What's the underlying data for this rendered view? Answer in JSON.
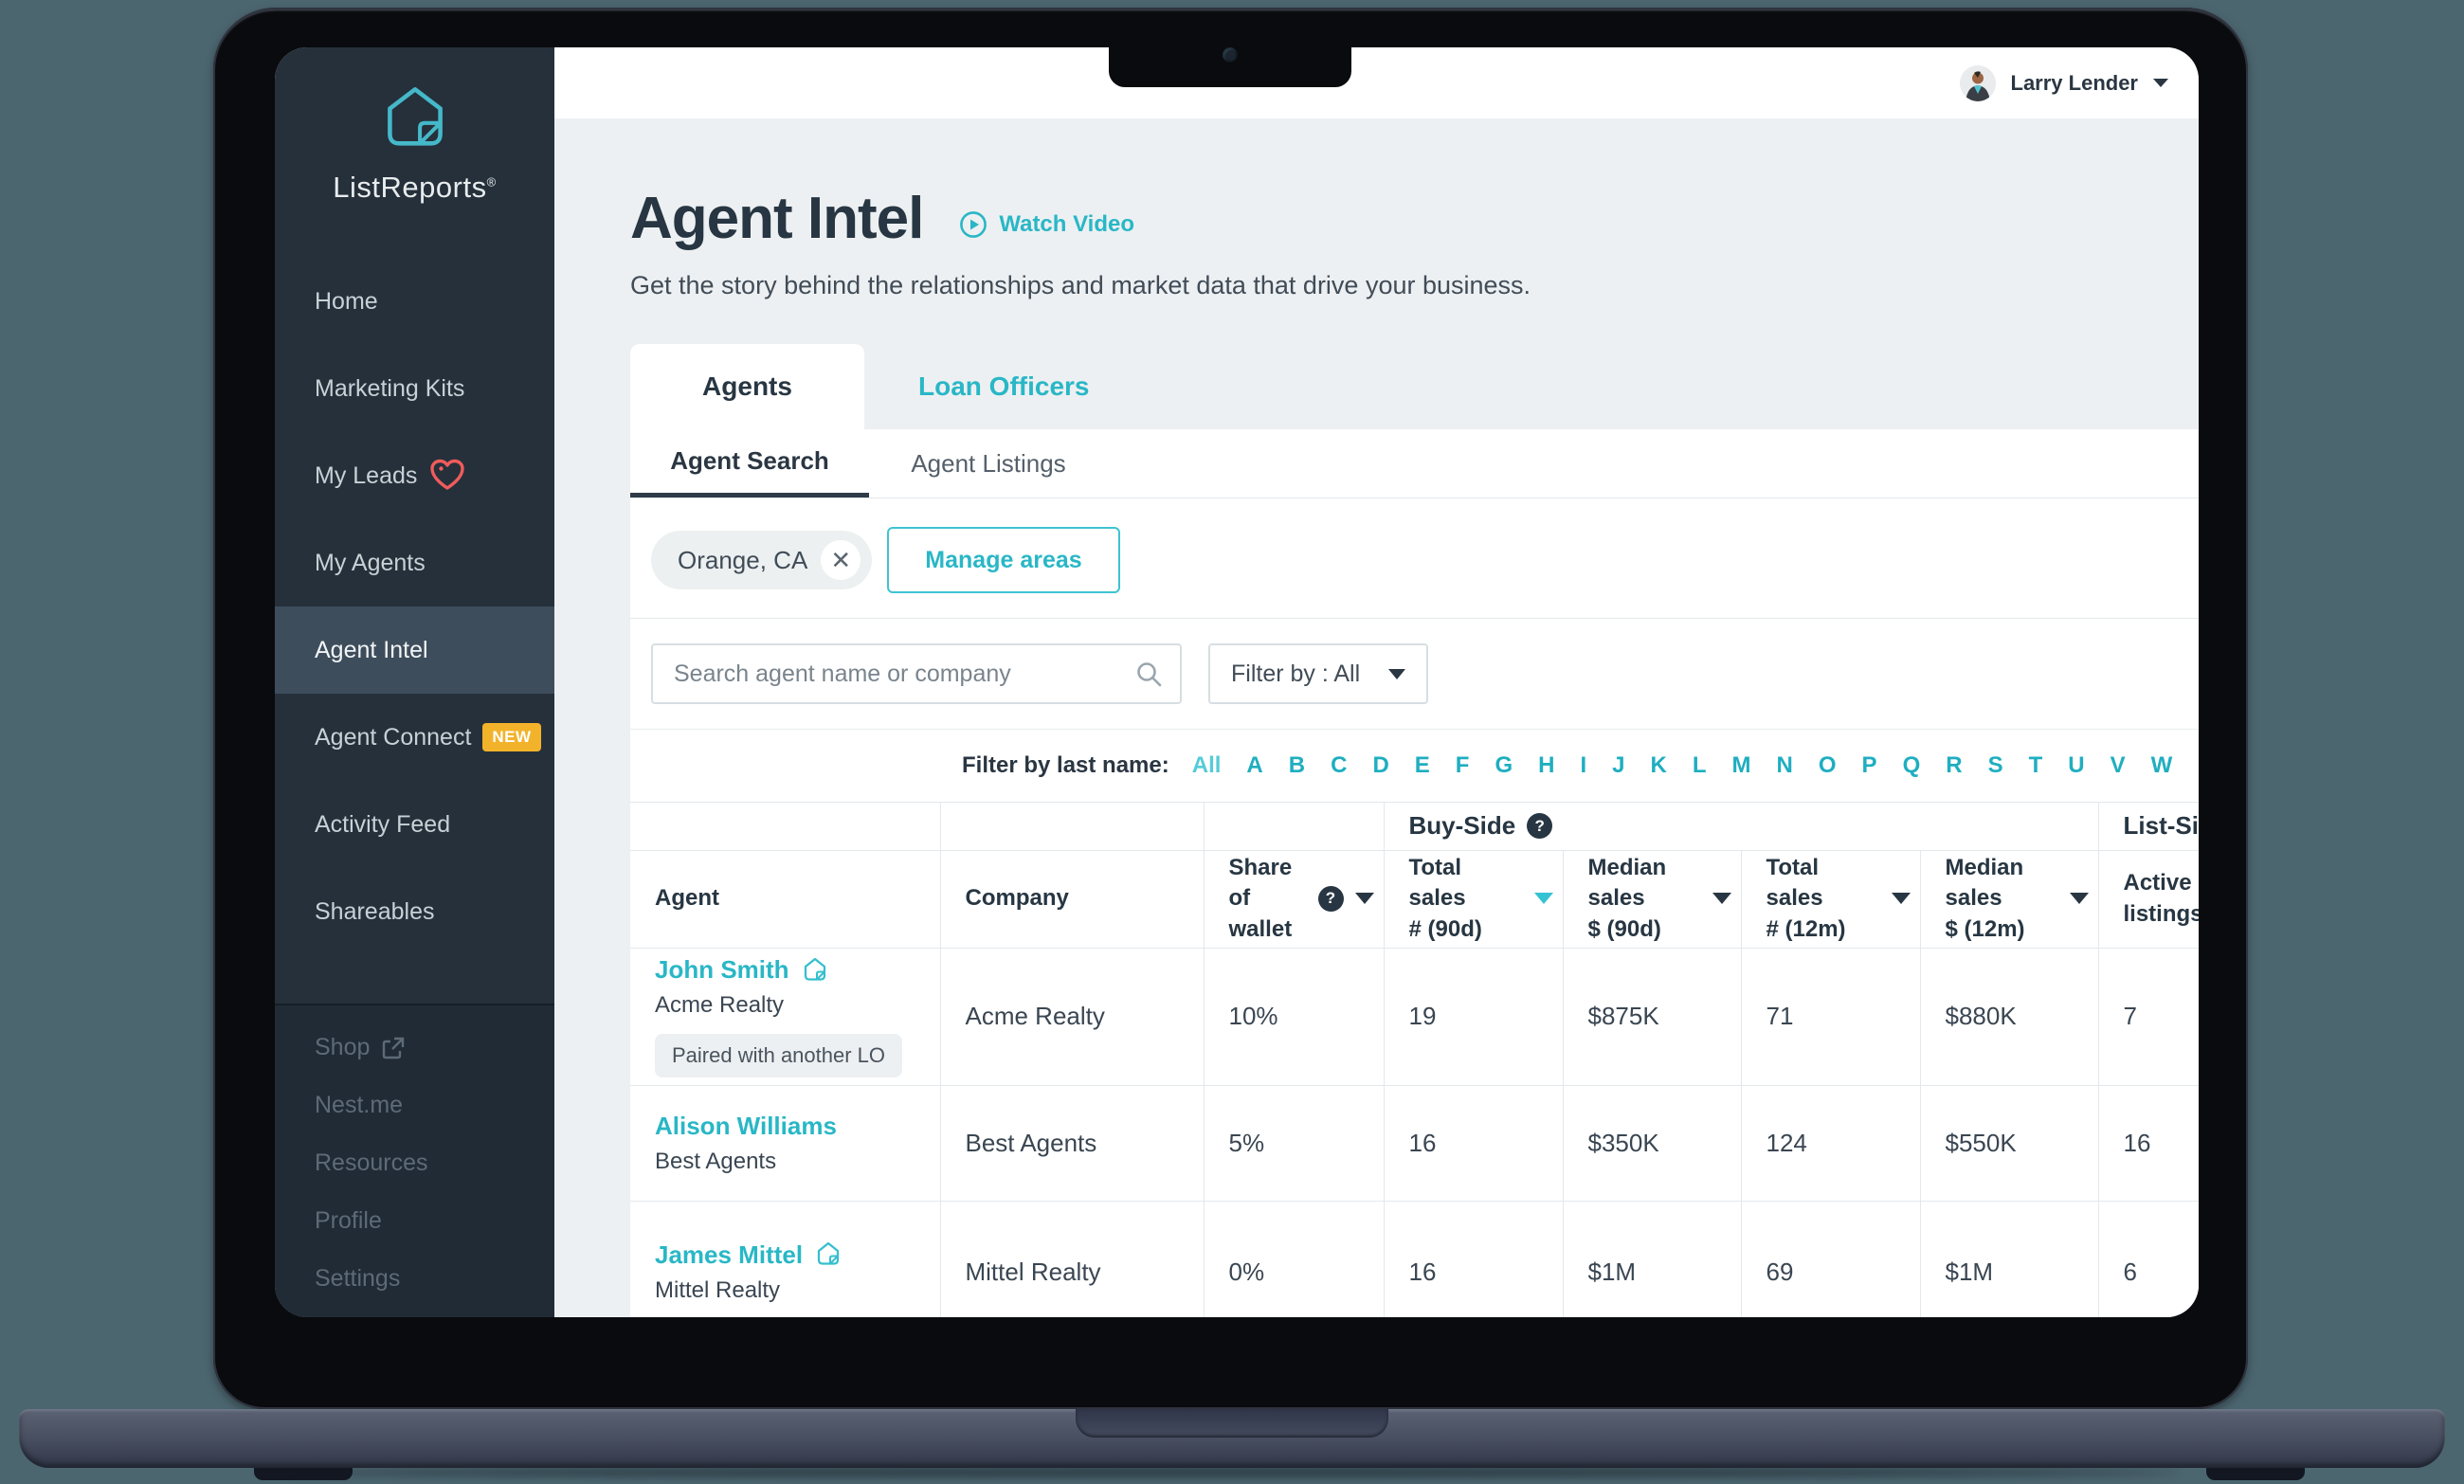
{
  "user": {
    "name": "Larry Lender"
  },
  "sidebar": {
    "logo_text": "ListReports",
    "logo_reg": "®",
    "items": [
      {
        "label": "Home"
      },
      {
        "label": "Marketing Kits"
      },
      {
        "label": "My Leads"
      },
      {
        "label": "My Agents"
      },
      {
        "label": "Agent Intel"
      },
      {
        "label": "Agent Connect",
        "badge": "NEW"
      },
      {
        "label": "Activity Feed"
      },
      {
        "label": "Shareables"
      }
    ],
    "bottom_items": [
      {
        "label": "Shop"
      },
      {
        "label": "Nest.me"
      },
      {
        "label": "Resources"
      },
      {
        "label": "Profile"
      },
      {
        "label": "Settings"
      }
    ]
  },
  "header": {
    "title": "Agent Intel",
    "watch_video": "Watch Video",
    "subtitle": "Get the story behind the relationships and market data that drive your business."
  },
  "tabs": {
    "agents": "Agents",
    "loan_officers": "Loan Officers"
  },
  "subtabs": {
    "search": "Agent Search",
    "listings": "Agent Listings"
  },
  "area_filter": {
    "chip": "Orange, CA",
    "chip_close": "✕",
    "manage_button": "Manage areas"
  },
  "search": {
    "placeholder": "Search agent name or company",
    "filter_label": "Filter by : All"
  },
  "filter_bar": {
    "label": "Filter by last name:",
    "letters": [
      "All",
      "A",
      "B",
      "C",
      "D",
      "E",
      "F",
      "G",
      "H",
      "I",
      "J",
      "K",
      "L",
      "M",
      "N",
      "O",
      "P",
      "Q",
      "R",
      "S",
      "T",
      "U",
      "V",
      "W"
    ]
  },
  "table": {
    "groups": {
      "buy_side": "Buy-Side",
      "list_side": "List-Side",
      "help": "?"
    },
    "columns": {
      "agent": "Agent",
      "company": "Company",
      "wallet_l1": "Share of",
      "wallet_l2": "wallet",
      "ts90_l1": "Total sales",
      "ts90_l2": "# (90d)",
      "ms90_l1": "Median sales",
      "ms90_l2": "$ (90d)",
      "ts12_l1": "Total sales",
      "ts12_l2": "# (12m)",
      "ms12_l1": "Median sales",
      "ms12_l2": "$ (12m)",
      "active_l1": "Active",
      "active_l2": "listings"
    },
    "rows": [
      {
        "name": "John Smith",
        "agent_company": "Acme Realty",
        "tag": "Paired with another LO",
        "company": "Acme Realty",
        "wallet": "10%",
        "ts90": "19",
        "ms90": "$875K",
        "ts12": "71",
        "ms12": "$880K",
        "active": "7"
      },
      {
        "name": "Alison Williams",
        "agent_company": "Best Agents",
        "company": "Best Agents",
        "wallet": "5%",
        "ts90": "16",
        "ms90": "$350K",
        "ts12": "124",
        "ms12": "$550K",
        "active": "16"
      },
      {
        "name": "James Mittel",
        "agent_company": "Mittel Realty",
        "company": "Mittel Realty",
        "wallet": "0%",
        "ts90": "16",
        "ms90": "$1M",
        "ts12": "69",
        "ms12": "$1M",
        "active": "6"
      }
    ]
  },
  "colors": {
    "accent_teal": "#29B7C6",
    "sidebar_bg": "#25303B",
    "badge_yellow": "#F2B32B",
    "heart_red": "#F05C5C"
  }
}
